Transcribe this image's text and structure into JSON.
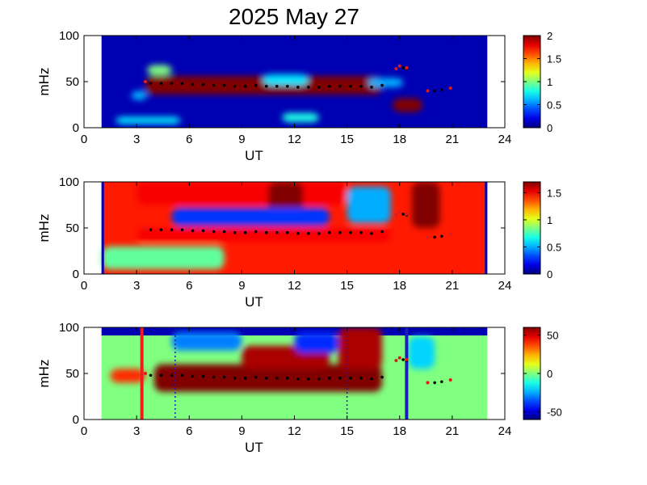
{
  "title": "2025 May 27",
  "colors": {
    "background_blue": "#00007f",
    "ts_marker": "#000000",
    "red_marker": "#e01a1a",
    "red_vline": "#ee1c1c",
    "blue_vline": "#1c1cbd"
  },
  "chart_data": [
    {
      "type": "heatmap",
      "xlabel": "UT",
      "ylabel": "mHz",
      "xlim": [
        0,
        24
      ],
      "ylim": [
        0,
        100
      ],
      "xticks": [
        "0",
        "3",
        "6",
        "9",
        "12",
        "15",
        "18",
        "21",
        "24"
      ],
      "yticks": [
        "0",
        "50",
        "100"
      ],
      "data_x_range": [
        1,
        23
      ],
      "colorbar": {
        "range": [
          0,
          2
        ],
        "ticks": [
          "0",
          "0.5",
          "1",
          "1.5",
          "2"
        ]
      },
      "features": [
        {
          "x": [
            3.5,
            17.0
          ],
          "y": [
            36,
            56
          ],
          "level": 2.0
        },
        {
          "x": [
            17.6,
            19.3
          ],
          "y": [
            17,
            32
          ],
          "level": 2.0
        },
        {
          "x": [
            3.6,
            5.0
          ],
          "y": [
            57,
            68
          ],
          "level": 1.0
        },
        {
          "x": [
            1.8,
            5.5
          ],
          "y": [
            4,
            12
          ],
          "level": 0.7
        },
        {
          "x": [
            11.3,
            13.4
          ],
          "y": [
            6,
            16
          ],
          "level": 0.8
        },
        {
          "x": [
            16.2,
            18.2
          ],
          "y": [
            44,
            54
          ],
          "level": 0.6
        },
        {
          "x": [
            2.7,
            3.6
          ],
          "y": [
            30,
            40
          ],
          "level": 0.6
        },
        {
          "x": [
            10.2,
            12.8
          ],
          "y": [
            46,
            58
          ],
          "level": 0.7
        }
      ]
    },
    {
      "type": "heatmap",
      "xlabel": "UT",
      "ylabel": "mHz",
      "xlim": [
        0,
        24
      ],
      "ylim": [
        0,
        100
      ],
      "xticks": [
        "0",
        "3",
        "6",
        "9",
        "12",
        "15",
        "18",
        "21",
        "24"
      ],
      "yticks": [
        "0",
        "50",
        "100"
      ],
      "data_x_range": [
        1,
        23
      ],
      "colorbar": {
        "range": [
          0,
          1.7
        ],
        "ticks": [
          "0",
          "0.5",
          "1",
          "1.5"
        ]
      },
      "features": [
        {
          "x": [
            3.0,
            17.5
          ],
          "y": [
            35,
            50
          ],
          "level": 1.5
        },
        {
          "x": [
            3.0,
            15.0
          ],
          "y": [
            75,
            100
          ],
          "level": 1.5
        },
        {
          "x": [
            10.5,
            12.5
          ],
          "y": [
            65,
            100
          ],
          "level": 1.7
        },
        {
          "x": [
            18.7,
            20.3
          ],
          "y": [
            50,
            100
          ],
          "level": 1.7
        },
        {
          "x": [
            5.0,
            14.0
          ],
          "y": [
            52,
            72
          ],
          "level": 0.3
        },
        {
          "x": [
            15.0,
            17.5
          ],
          "y": [
            55,
            95
          ],
          "level": 0.5
        },
        {
          "x": [
            1.0,
            8.0
          ],
          "y": [
            5,
            30
          ],
          "level": 0.8
        }
      ]
    },
    {
      "type": "heatmap",
      "xlabel": "UT",
      "ylabel": "mHz",
      "xlim": [
        0,
        24
      ],
      "ylim": [
        0,
        100
      ],
      "xticks": [
        "0",
        "3",
        "6",
        "9",
        "12",
        "15",
        "18",
        "21",
        "24"
      ],
      "yticks": [
        "0",
        "50",
        "100"
      ],
      "data_x_range": [
        1,
        23
      ],
      "colorbar": {
        "range": [
          -60,
          60
        ],
        "ticks": [
          "50",
          "0",
          "-50"
        ]
      },
      "features": [
        {
          "x": [
            4.0,
            17.0
          ],
          "y": [
            30,
            60
          ],
          "level": 60
        },
        {
          "x": [
            9.0,
            14.0
          ],
          "y": [
            55,
            80
          ],
          "level": 55
        },
        {
          "x": [
            14.5,
            17.0
          ],
          "y": [
            55,
            100
          ],
          "level": 55
        },
        {
          "x": [
            1.5,
            3.5
          ],
          "y": [
            40,
            55
          ],
          "level": 40
        },
        {
          "x": [
            5.0,
            9.0
          ],
          "y": [
            75,
            95
          ],
          "level": -30
        },
        {
          "x": [
            12.0,
            14.5
          ],
          "y": [
            72,
            95
          ],
          "level": -40
        },
        {
          "x": [
            18.5,
            20.0
          ],
          "y": [
            55,
            90
          ],
          "level": -20
        }
      ],
      "vlines": [
        {
          "x": 3.3,
          "color": "#ee1c1c",
          "style": "solid"
        },
        {
          "x": 18.4,
          "color": "#1c1cbd",
          "style": "solid"
        },
        {
          "x": 5.2,
          "color": "#1c1cbd",
          "style": "dotted"
        },
        {
          "x": 15.0,
          "color": "#1c1cbd",
          "style": "dotted"
        }
      ]
    }
  ],
  "markers": {
    "black": [
      [
        3.8,
        48
      ],
      [
        4.4,
        48
      ],
      [
        5.0,
        48
      ],
      [
        5.6,
        48
      ],
      [
        6.2,
        47
      ],
      [
        6.8,
        47
      ],
      [
        7.4,
        46
      ],
      [
        8.0,
        46
      ],
      [
        8.6,
        45
      ],
      [
        9.2,
        45
      ],
      [
        9.8,
        46
      ],
      [
        10.4,
        45
      ],
      [
        11.0,
        45
      ],
      [
        11.6,
        45
      ],
      [
        12.2,
        44
      ],
      [
        12.8,
        44
      ],
      [
        13.4,
        44
      ],
      [
        14.0,
        45
      ],
      [
        14.6,
        45
      ],
      [
        15.2,
        45
      ],
      [
        15.8,
        45
      ],
      [
        16.4,
        44
      ],
      [
        17.0,
        46
      ],
      [
        19.6,
        40
      ],
      [
        20.0,
        40
      ],
      [
        20.4,
        41
      ],
      [
        18.2,
        65
      ],
      [
        18.4,
        64
      ]
    ],
    "red": [
      [
        3.5,
        50
      ],
      [
        17.8,
        64
      ],
      [
        18.0,
        67
      ],
      [
        18.4,
        65
      ],
      [
        19.6,
        40
      ],
      [
        20.9,
        43
      ]
    ]
  }
}
